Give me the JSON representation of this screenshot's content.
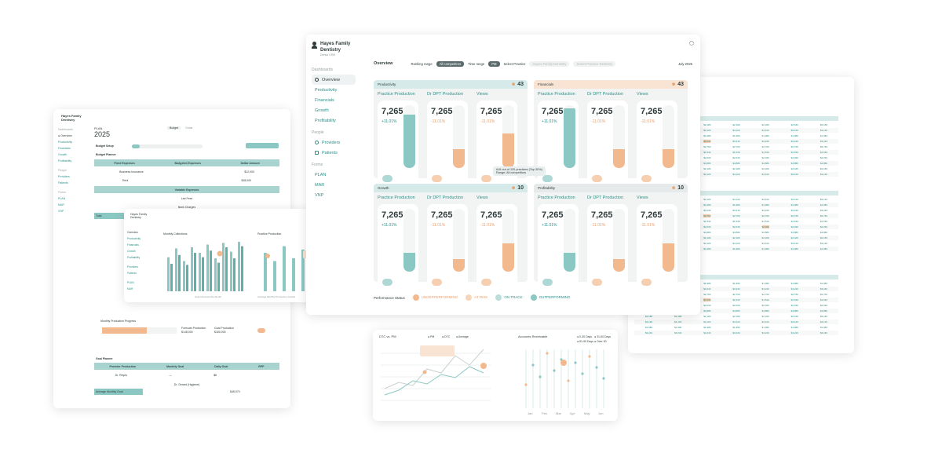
{
  "colors": {
    "teal": "#8cc8c3",
    "teal_dark": "#5fb0a9",
    "peach": "#f2b98e",
    "text": "#2f3b3b"
  },
  "main": {
    "brand": {
      "name_line1": "Hayes Family",
      "name_line2": "Dentistry",
      "sub": "Dental CRM"
    },
    "sections": {
      "dashboards": "Dashboards",
      "people": "People",
      "forms": "Forms"
    },
    "nav": {
      "dashboards": [
        {
          "label": "Overview",
          "active": true
        },
        {
          "label": "Productivity"
        },
        {
          "label": "Financials"
        },
        {
          "label": "Growth"
        },
        {
          "label": "Profitability"
        }
      ],
      "people": [
        {
          "label": "Providers"
        },
        {
          "label": "Patients"
        }
      ],
      "forms": [
        {
          "label": "PLAN"
        },
        {
          "label": "MAR"
        },
        {
          "label": "VNP"
        }
      ]
    },
    "topbar": {
      "title": "Overview",
      "ranking_range_label": "Ranking range",
      "ranking_range_value": "All competitors",
      "time_range_label": "Time range",
      "time_range_value": "PM",
      "select_practice": "Select Practice",
      "filter1": "Hayes Family Dentistry",
      "filter2": "Select Practice Dentistry",
      "month": "July 2025"
    },
    "panels": [
      {
        "title": "Productivity",
        "score": "43",
        "head": "teal",
        "metrics": [
          {
            "label": "Practice Production",
            "value": "7,265",
            "pct": "+11.01%",
            "dir": "up",
            "fill": 0.85,
            "fill_color": "teal"
          },
          {
            "label": "Dr DPT Production",
            "value": "7,265",
            "pct": "-11.01%",
            "dir": "down",
            "fill": 0.3,
            "fill_color": "peach"
          },
          {
            "label": "Views",
            "value": "7,265",
            "pct": "-11.01%",
            "dir": "down",
            "fill": 0.55,
            "fill_color": "peach"
          }
        ]
      },
      {
        "title": "Financials",
        "score": "43",
        "head": "peach",
        "metrics": [
          {
            "label": "Practice Production",
            "value": "7,265",
            "pct": "+11.01%",
            "dir": "up",
            "fill": 0.95,
            "fill_color": "teal"
          },
          {
            "label": "Dr DPT Production",
            "value": "7,265",
            "pct": "-11.01%",
            "dir": "down",
            "fill": 0.3,
            "fill_color": "peach"
          },
          {
            "label": "Views",
            "value": "7,265",
            "pct": "-11.01%",
            "dir": "down",
            "fill": 0.3,
            "fill_color": "peach"
          }
        ]
      },
      {
        "title": "Growth",
        "score": "10",
        "head": "teal",
        "metrics": [
          {
            "label": "Practice Production",
            "value": "7,265",
            "pct": "+11.01%",
            "dir": "up",
            "fill": 0.3,
            "fill_color": "teal"
          },
          {
            "label": "Dr DPT Production",
            "value": "7,265",
            "pct": "-11.01%",
            "dir": "down",
            "fill": 0.2,
            "fill_color": "peach"
          },
          {
            "label": "Views",
            "value": "7,265",
            "pct": "-11.01%",
            "dir": "down",
            "fill": 0.45,
            "fill_color": "peach"
          }
        ]
      },
      {
        "title": "Profitability",
        "score": "10",
        "head": "grey",
        "metrics": [
          {
            "label": "Practice Production",
            "value": "7,265",
            "pct": "+11.01%",
            "dir": "up",
            "fill": 0.3,
            "fill_color": "teal"
          },
          {
            "label": "Dr DPT Production",
            "value": "7,265",
            "pct": "-11.01%",
            "dir": "down",
            "fill": 0.2,
            "fill_color": "peach"
          },
          {
            "label": "Views",
            "value": "7,265",
            "pct": "-11.01%",
            "dir": "down",
            "fill": 0.45,
            "fill_color": "peach"
          }
        ]
      }
    ],
    "tooltip_line1": "#16 out of 120 practices (Top 30%)",
    "tooltip_line2": "Range: All competitors",
    "legend": {
      "title": "Performance Status",
      "items": [
        "UNDERPERFORMING",
        "AT RISK",
        "ON TRACK",
        "OUTPERFORMING"
      ]
    }
  },
  "budget": {
    "brand": "Hayes Family Dentistry",
    "plan_label": "PLAN",
    "year": "2025",
    "tabs": [
      "Budget",
      "Goals"
    ],
    "budget_setup": "Budget Setup",
    "budget_planner": "Budget Planner",
    "fixed_expenses": "Fixed Expenses",
    "budgeted_expenses": "Budgeted Expenses",
    "dollar_amount": "Dollar Amount",
    "rows": [
      {
        "name": "Business Insurance",
        "value": "$12,000"
      },
      {
        "name": "Rent",
        "value": "$18,000"
      }
    ],
    "variable_expenses": "Variable Expenses",
    "lab": "Lab Fees",
    "bank_charges": "Bank Charges",
    "total": "Total",
    "monthly_progress": "Monthly Production Progress",
    "forecast": "Forecast Production",
    "forecast_value": "$148,000",
    "goal_production": "Goal Production",
    "goal_value": "$180,000",
    "goal_planner": "Goal Planner",
    "planner_cols": [
      "Provider Production",
      "Monthly Goal",
      "Daily Goal",
      "RPP"
    ],
    "providers": [
      {
        "name": "Dr. Reyes",
        "daily": "$8"
      },
      {
        "name": "Dr. Gerard (Hygiene)"
      }
    ],
    "avg_monthly": "Average Monthly Goal",
    "avg_value": "$48,970"
  },
  "mini": {
    "title": "Hayes Family Dentistry",
    "chart1": "Monthly Collections",
    "chart2": "Practice Production",
    "nav": [
      "Overview",
      "Productivity",
      "Financials",
      "Growth",
      "Profitability",
      "Providers",
      "Patients",
      "PLAN",
      "MAR"
    ],
    "note1": "Goal Achieved this Month",
    "note2": "Average Monthly Production Growth"
  },
  "rtable": {
    "section2": "Production Summary",
    "cols": [
      "Provider",
      "Production",
      "Collections",
      "Adjustments",
      "Percentage",
      "Patients",
      "Visits",
      "New"
    ],
    "rows": [
      "$2,180",
      "$4,120",
      "$1,980",
      "$3,240",
      "$2,760",
      "$1,540",
      "$2,030",
      "$4,880"
    ]
  },
  "bchart": {
    "title1": "DTC vs. PM",
    "legend1": [
      "PM",
      "DTC",
      "Average"
    ],
    "title2": "Accounts Receivable",
    "legend2": [
      "0-30 Days",
      "31-60 Days",
      "61-90 Days",
      "Over 90"
    ],
    "months": [
      "Jan",
      "Feb",
      "Mar",
      "Apr",
      "May",
      "Jun"
    ]
  },
  "chart_data": [
    {
      "type": "bar",
      "title": "Monthly Collections",
      "series": [
        {
          "values": [
            62,
            78,
            55,
            80,
            70,
            85,
            60,
            88,
            72,
            90
          ]
        },
        {
          "values": [
            50,
            66,
            48,
            70,
            62,
            74,
            52,
            80,
            60,
            82
          ]
        }
      ]
    },
    {
      "type": "bar",
      "title": "Practice Production",
      "series": [
        {
          "values": [
            70,
            55,
            82,
            60,
            76,
            50,
            68,
            58
          ]
        }
      ]
    },
    {
      "type": "line",
      "title": "DTC vs. PM",
      "series": [
        {
          "name": "PM",
          "values": [
            20,
            28,
            24,
            45,
            40,
            62,
            50,
            70
          ]
        },
        {
          "name": "DTC",
          "values": [
            12,
            18,
            30,
            26,
            38,
            34,
            48,
            40
          ]
        }
      ]
    },
    {
      "type": "scatter",
      "title": "Accounts Receivable",
      "series": [
        {
          "values": [
            30,
            55,
            40,
            70,
            48,
            62,
            35,
            58,
            44,
            66,
            52,
            38
          ]
        }
      ]
    }
  ]
}
